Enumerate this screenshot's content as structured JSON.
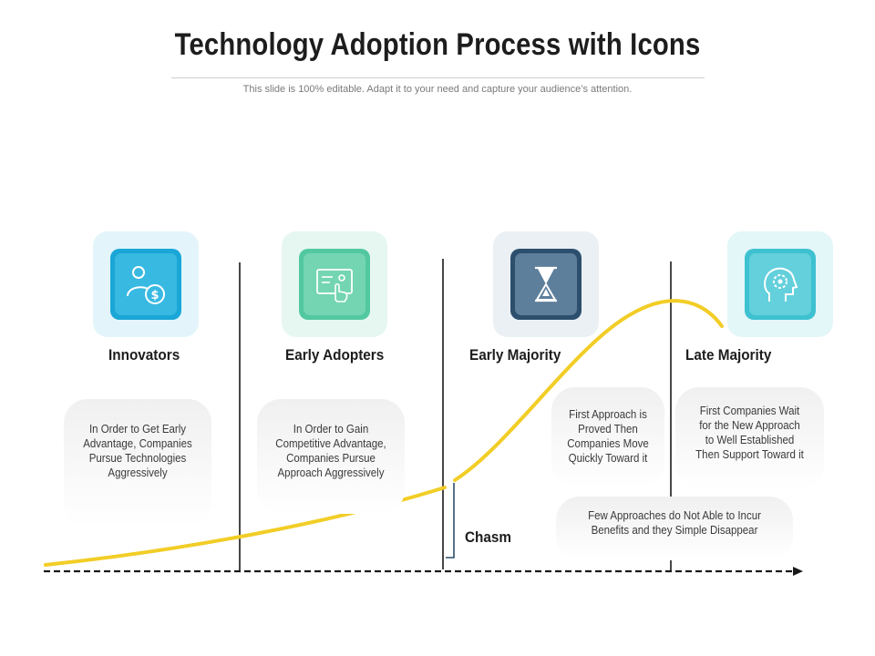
{
  "title": "Technology Adoption Process with Icons",
  "subtitle": "This slide is 100% editable. Adapt it to your need and capture your audience’s attention.",
  "colors": {
    "curve": "#f2cd26",
    "axis": "#1a1a1a",
    "innovators": "#1aa6d6",
    "early_adopters": "#52c8a0",
    "early_majority": "#2d4f6e",
    "late_majority": "#3ec1d0"
  },
  "stages": [
    {
      "label": "Innovators",
      "icon": "user-dollar-icon",
      "description": "In Order to Get Early Advantage, Companies Pursue Technologies Aggressively"
    },
    {
      "label": "Early Adopters",
      "icon": "touch-screen-icon",
      "description": "In Order to Gain Competitive Advantage, Companies Pursue Approach Aggressively"
    },
    {
      "label": "Early Majority",
      "icon": "hourglass-icon",
      "description": "First Approach is Proved Then Companies Move Quickly Toward it"
    },
    {
      "label": "Late Majority",
      "icon": "head-gear-icon",
      "description": "First Companies Wait for the New Approach to Well Established Then Support Toward it"
    }
  ],
  "chasm": {
    "label": "Chasm",
    "description": "Few Approaches do Not Able to Incur Benefits and they Simple Disappear"
  }
}
